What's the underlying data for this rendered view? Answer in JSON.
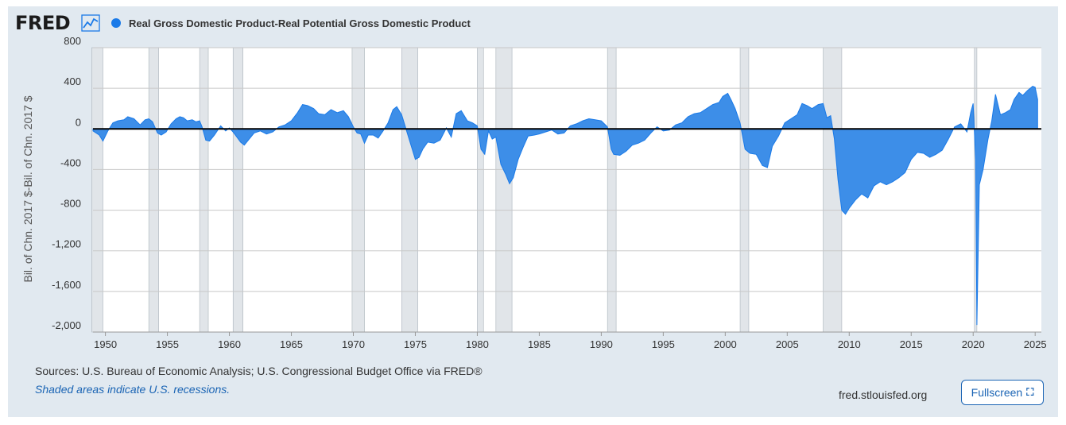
{
  "header": {
    "logo_text": "FRED",
    "logo_icon": "line-chart-icon",
    "legend_label": "Real Gross Domestic Product-Real Potential Gross Domestic Product",
    "legend_color": "#1a7ae8"
  },
  "footer": {
    "sources": "Sources: U.S. Bureau of Economic Analysis; U.S. Congressional Budget Office via FRED®",
    "recession_note": "Shaded areas indicate U.S. recessions.",
    "site": "fred.stlouisfed.org",
    "fullscreen_label": "Fullscreen",
    "fullscreen_icon": "expand-icon"
  },
  "chart_data": {
    "type": "area",
    "series_name": "Real Gross Domestic Product-Real Potential Gross Domestic Product",
    "ylabel": "Bil. of Chn. 2017 $-Bil. of Chn. 2017 $",
    "xlim": [
      1949,
      2025.5
    ],
    "ylim": [
      -2000,
      800
    ],
    "y_ticks": [
      800,
      400,
      0,
      -400,
      -800,
      -1200,
      -1600,
      -2000
    ],
    "y_tick_labels": [
      "800",
      "400",
      "0",
      "-400",
      "-800",
      "-1,200",
      "-1,600",
      "-2,000"
    ],
    "x_ticks": [
      1950,
      1955,
      1960,
      1965,
      1970,
      1975,
      1980,
      1985,
      1990,
      1995,
      2000,
      2005,
      2010,
      2015,
      2020,
      2025
    ],
    "x_tick_labels": [
      "1950",
      "1955",
      "1960",
      "1965",
      "1970",
      "1975",
      "1980",
      "1985",
      "1990",
      "1995",
      "2000",
      "2005",
      "2010",
      "2015",
      "2020",
      "2025"
    ],
    "fill_color": "#3d8ee8",
    "line_color": "#1a7ae8",
    "zero_line_color": "#000000",
    "recessions": [
      [
        1948.9,
        1949.8
      ],
      [
        1953.5,
        1954.3
      ],
      [
        1957.6,
        1958.3
      ],
      [
        1960.3,
        1961.1
      ],
      [
        1969.9,
        1970.9
      ],
      [
        1973.9,
        1975.2
      ],
      [
        1980.0,
        1980.5
      ],
      [
        1981.5,
        1982.8
      ],
      [
        1990.5,
        1991.2
      ],
      [
        2001.2,
        2001.9
      ],
      [
        2007.9,
        2009.4
      ],
      [
        2020.1,
        2020.3
      ]
    ],
    "points": [
      [
        1949.0,
        -20
      ],
      [
        1949.5,
        -60
      ],
      [
        1949.8,
        -120
      ],
      [
        1950.2,
        -20
      ],
      [
        1950.6,
        60
      ],
      [
        1951.0,
        80
      ],
      [
        1951.5,
        90
      ],
      [
        1951.8,
        120
      ],
      [
        1952.3,
        100
      ],
      [
        1952.8,
        40
      ],
      [
        1953.2,
        90
      ],
      [
        1953.5,
        100
      ],
      [
        1953.8,
        70
      ],
      [
        1954.2,
        -40
      ],
      [
        1954.5,
        -60
      ],
      [
        1954.9,
        -30
      ],
      [
        1955.3,
        50
      ],
      [
        1955.7,
        100
      ],
      [
        1956.0,
        120
      ],
      [
        1956.3,
        110
      ],
      [
        1956.6,
        80
      ],
      [
        1957.0,
        90
      ],
      [
        1957.3,
        70
      ],
      [
        1957.6,
        80
      ],
      [
        1957.8,
        20
      ],
      [
        1958.1,
        -110
      ],
      [
        1958.4,
        -120
      ],
      [
        1958.8,
        -60
      ],
      [
        1959.3,
        30
      ],
      [
        1959.7,
        -20
      ],
      [
        1960.0,
        10
      ],
      [
        1960.3,
        -30
      ],
      [
        1960.6,
        -80
      ],
      [
        1960.9,
        -130
      ],
      [
        1961.2,
        -160
      ],
      [
        1961.6,
        -100
      ],
      [
        1962.0,
        -40
      ],
      [
        1962.5,
        -20
      ],
      [
        1963.0,
        -50
      ],
      [
        1963.5,
        -30
      ],
      [
        1964.0,
        20
      ],
      [
        1964.5,
        40
      ],
      [
        1965.0,
        80
      ],
      [
        1965.5,
        160
      ],
      [
        1965.9,
        240
      ],
      [
        1966.3,
        230
      ],
      [
        1966.8,
        200
      ],
      [
        1967.2,
        150
      ],
      [
        1967.7,
        140
      ],
      [
        1968.2,
        190
      ],
      [
        1968.7,
        160
      ],
      [
        1969.2,
        180
      ],
      [
        1969.6,
        120
      ],
      [
        1970.0,
        20
      ],
      [
        1970.3,
        -40
      ],
      [
        1970.6,
        -50
      ],
      [
        1970.9,
        -140
      ],
      [
        1971.2,
        -60
      ],
      [
        1971.6,
        -60
      ],
      [
        1972.0,
        -90
      ],
      [
        1972.4,
        -20
      ],
      [
        1972.8,
        60
      ],
      [
        1973.2,
        190
      ],
      [
        1973.5,
        220
      ],
      [
        1973.9,
        140
      ],
      [
        1974.3,
        -20
      ],
      [
        1974.7,
        -180
      ],
      [
        1975.0,
        -300
      ],
      [
        1975.3,
        -280
      ],
      [
        1975.6,
        -200
      ],
      [
        1976.0,
        -130
      ],
      [
        1976.5,
        -140
      ],
      [
        1977.0,
        -110
      ],
      [
        1977.5,
        10
      ],
      [
        1977.9,
        -80
      ],
      [
        1978.3,
        150
      ],
      [
        1978.7,
        180
      ],
      [
        1979.2,
        80
      ],
      [
        1979.6,
        60
      ],
      [
        1980.0,
        30
      ],
      [
        1980.3,
        -200
      ],
      [
        1980.6,
        -250
      ],
      [
        1980.9,
        -20
      ],
      [
        1981.2,
        -100
      ],
      [
        1981.5,
        -80
      ],
      [
        1981.9,
        -350
      ],
      [
        1982.3,
        -450
      ],
      [
        1982.6,
        -540
      ],
      [
        1982.9,
        -480
      ],
      [
        1983.3,
        -300
      ],
      [
        1983.7,
        -180
      ],
      [
        1984.1,
        -70
      ],
      [
        1984.6,
        -60
      ],
      [
        1985.0,
        -50
      ],
      [
        1985.5,
        -30
      ],
      [
        1986.0,
        -10
      ],
      [
        1986.5,
        -50
      ],
      [
        1987.0,
        -40
      ],
      [
        1987.5,
        30
      ],
      [
        1988.0,
        50
      ],
      [
        1988.5,
        80
      ],
      [
        1989.0,
        100
      ],
      [
        1989.5,
        90
      ],
      [
        1990.0,
        80
      ],
      [
        1990.5,
        20
      ],
      [
        1990.8,
        -200
      ],
      [
        1991.0,
        -250
      ],
      [
        1991.5,
        -260
      ],
      [
        1992.0,
        -220
      ],
      [
        1992.5,
        -160
      ],
      [
        1993.0,
        -140
      ],
      [
        1993.5,
        -110
      ],
      [
        1994.0,
        -40
      ],
      [
        1994.5,
        20
      ],
      [
        1995.0,
        -20
      ],
      [
        1995.5,
        -10
      ],
      [
        1996.0,
        40
      ],
      [
        1996.5,
        60
      ],
      [
        1997.0,
        120
      ],
      [
        1997.5,
        150
      ],
      [
        1998.0,
        160
      ],
      [
        1998.5,
        200
      ],
      [
        1999.0,
        240
      ],
      [
        1999.5,
        260
      ],
      [
        1999.8,
        320
      ],
      [
        2000.2,
        350
      ],
      [
        2000.5,
        280
      ],
      [
        2000.8,
        200
      ],
      [
        2001.2,
        60
      ],
      [
        2001.6,
        -200
      ],
      [
        2002.0,
        -240
      ],
      [
        2002.5,
        -250
      ],
      [
        2003.0,
        -360
      ],
      [
        2003.4,
        -380
      ],
      [
        2003.8,
        -170
      ],
      [
        2004.3,
        -70
      ],
      [
        2004.8,
        60
      ],
      [
        2005.3,
        100
      ],
      [
        2005.8,
        140
      ],
      [
        2006.2,
        250
      ],
      [
        2006.6,
        230
      ],
      [
        2007.0,
        200
      ],
      [
        2007.5,
        240
      ],
      [
        2007.9,
        250
      ],
      [
        2008.2,
        110
      ],
      [
        2008.5,
        130
      ],
      [
        2008.8,
        -100
      ],
      [
        2009.1,
        -500
      ],
      [
        2009.4,
        -800
      ],
      [
        2009.7,
        -840
      ],
      [
        2010.0,
        -780
      ],
      [
        2010.5,
        -700
      ],
      [
        2011.0,
        -640
      ],
      [
        2011.5,
        -680
      ],
      [
        2012.0,
        -560
      ],
      [
        2012.5,
        -520
      ],
      [
        2013.0,
        -550
      ],
      [
        2013.5,
        -520
      ],
      [
        2014.0,
        -480
      ],
      [
        2014.5,
        -430
      ],
      [
        2015.0,
        -300
      ],
      [
        2015.5,
        -230
      ],
      [
        2016.0,
        -240
      ],
      [
        2016.5,
        -280
      ],
      [
        2017.0,
        -250
      ],
      [
        2017.5,
        -210
      ],
      [
        2018.0,
        -100
      ],
      [
        2018.5,
        20
      ],
      [
        2019.0,
        50
      ],
      [
        2019.5,
        -30
      ],
      [
        2019.8,
        160
      ],
      [
        2020.0,
        250
      ],
      [
        2020.2,
        -300
      ],
      [
        2020.3,
        -1930
      ],
      [
        2020.5,
        -550
      ],
      [
        2020.8,
        -400
      ],
      [
        2021.2,
        -100
      ],
      [
        2021.5,
        80
      ],
      [
        2021.8,
        340
      ],
      [
        2022.2,
        140
      ],
      [
        2022.6,
        160
      ],
      [
        2023.0,
        190
      ],
      [
        2023.3,
        290
      ],
      [
        2023.7,
        360
      ],
      [
        2024.0,
        330
      ],
      [
        2024.4,
        380
      ],
      [
        2024.8,
        420
      ],
      [
        2025.0,
        410
      ],
      [
        2025.2,
        290
      ]
    ]
  }
}
